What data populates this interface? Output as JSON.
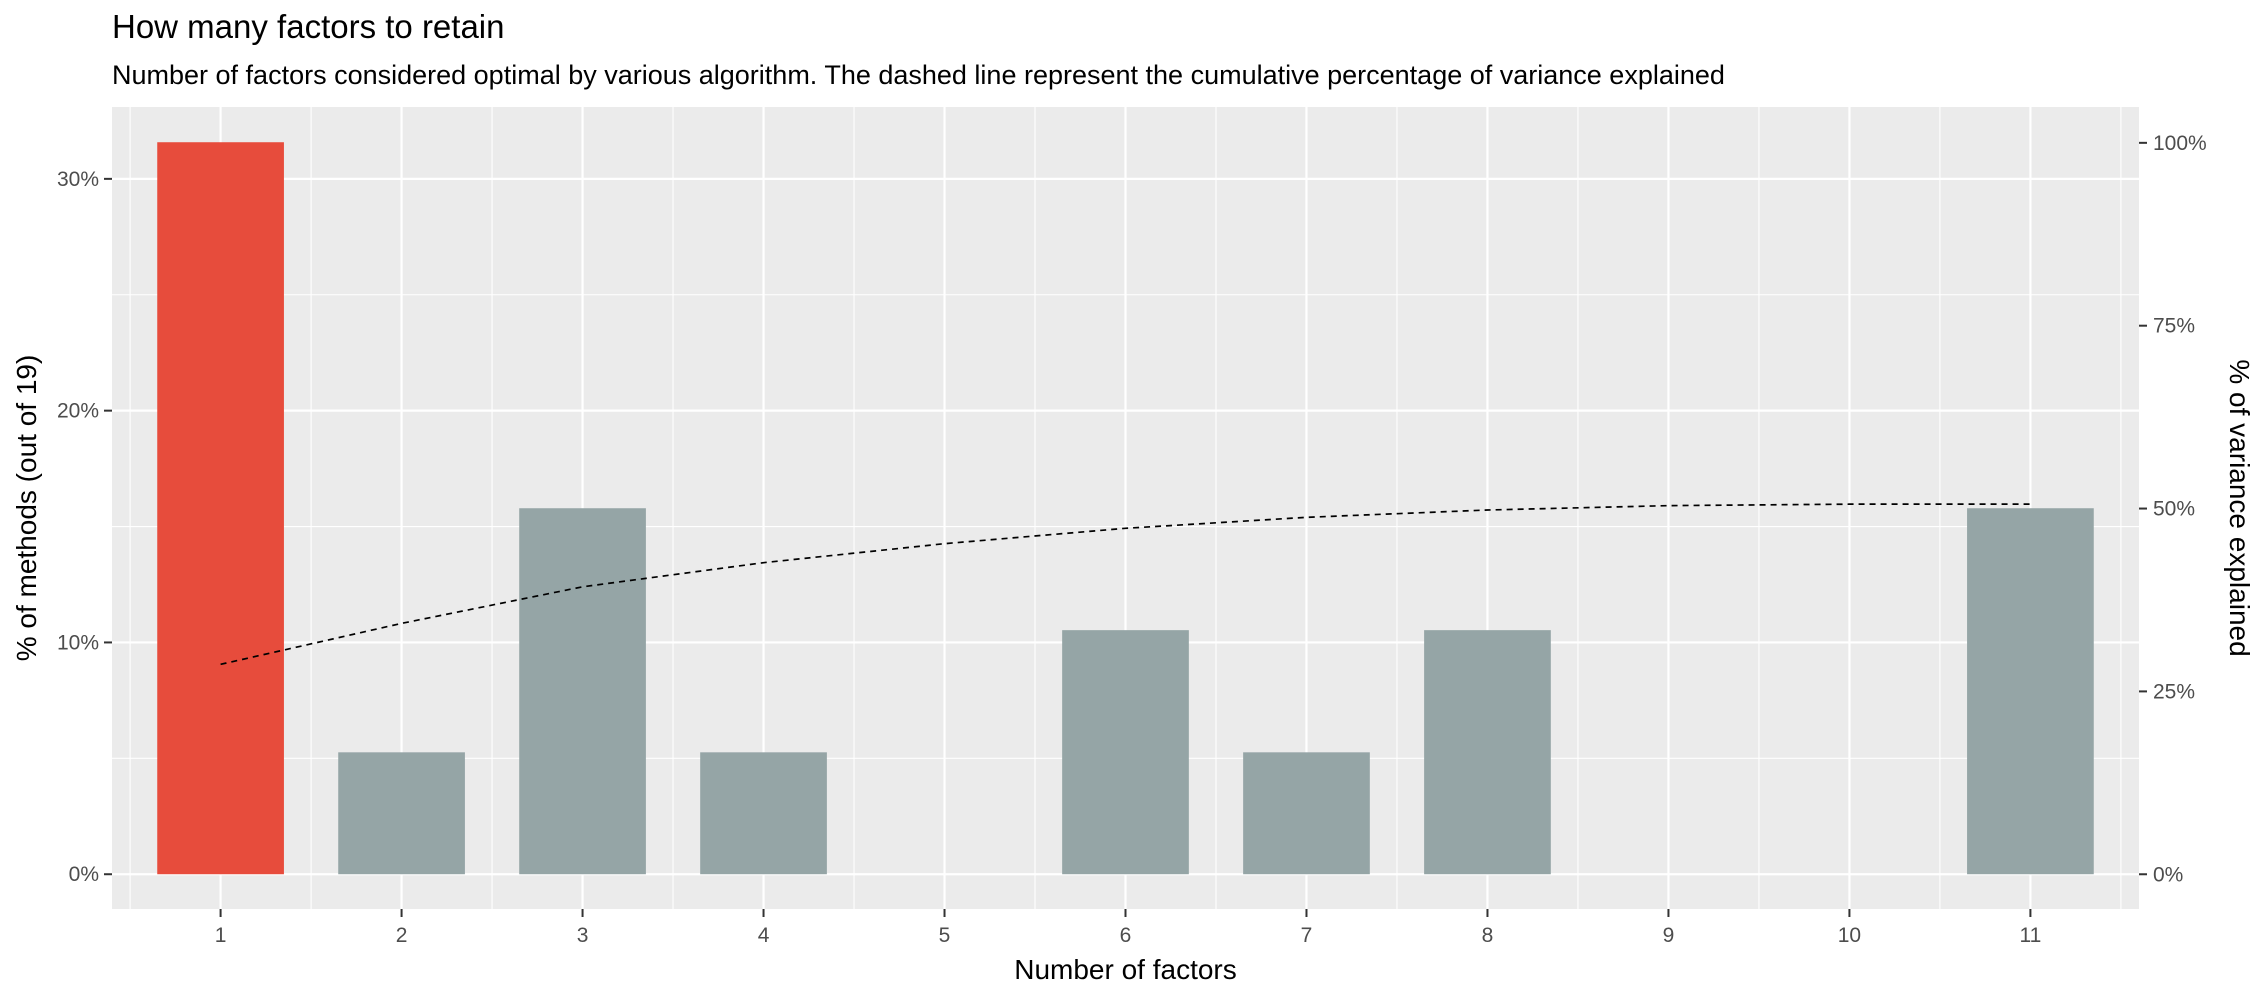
{
  "chart_data": {
    "type": "bar",
    "title": "How many factors to retain",
    "subtitle": "Number of factors considered optimal by various algorithm. The dashed line represent the cumulative percentage of variance explained",
    "xlabel": "Number of factors",
    "ylabel": "% of methods (out of 19)",
    "y2label": "% of variance explained",
    "categories": [
      "1",
      "2",
      "3",
      "4",
      "5",
      "6",
      "7",
      "8",
      "9",
      "10",
      "11"
    ],
    "values": [
      31.58,
      5.26,
      15.79,
      5.26,
      0,
      10.53,
      5.26,
      10.53,
      0,
      0,
      15.79
    ],
    "highlight_index": 0,
    "colors": {
      "highlight": "#E74C3C",
      "bar": "#95A5A6",
      "panel": "#EBEBEB",
      "grid": "#FFFFFF",
      "line": "#000000"
    },
    "ylim": [
      -1.5,
      33.1
    ],
    "yticks": [
      0,
      10,
      20,
      30
    ],
    "ytick_labels": [
      "0%",
      "10%",
      "20%",
      "30%"
    ],
    "y2lim": [
      -4.75,
      104.9
    ],
    "y2ticks": [
      0,
      25,
      50,
      75,
      100
    ],
    "y2tick_labels": [
      "0%",
      "25%",
      "50%",
      "75%",
      "100%"
    ],
    "variance_line": {
      "style": "dashed",
      "x": [
        1,
        2,
        3,
        4,
        5,
        6,
        7,
        8,
        9,
        10,
        11
      ],
      "y": [
        28.7,
        34.3,
        39.3,
        42.6,
        45.2,
        47.3,
        48.8,
        49.8,
        50.4,
        50.6,
        50.6
      ]
    },
    "grid": true,
    "legend": "none"
  }
}
